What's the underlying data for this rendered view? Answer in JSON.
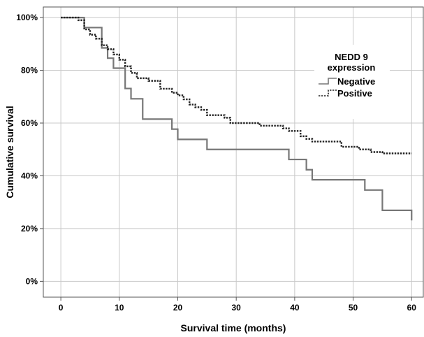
{
  "chart_data": {
    "type": "line",
    "subtype": "kaplan-meier step",
    "xlabel": "Survival time (months)",
    "ylabel": "Cumulative survival",
    "xlim": [
      -3,
      62
    ],
    "ylim": [
      -6,
      104
    ],
    "x_ticks": [
      0,
      10,
      20,
      30,
      40,
      50,
      60
    ],
    "y_ticks": [
      0,
      20,
      40,
      60,
      80,
      100
    ],
    "y_tick_labels": [
      "0%",
      "20%",
      "40%",
      "60%",
      "80%",
      "100%"
    ],
    "grid": true,
    "legend": {
      "title_line1": "NEDD 9",
      "title_line2": "expression",
      "placement": "upper right"
    },
    "series": [
      {
        "name": "Negative",
        "style": "solid",
        "color": "#777777",
        "x": [
          0,
          4,
          5,
          7,
          8,
          9,
          11,
          12,
          14,
          19,
          20,
          25,
          39,
          42,
          43,
          52,
          55,
          60
        ],
        "y": [
          100,
          96.2,
          96.2,
          88.5,
          84.6,
          80.8,
          73.1,
          69.2,
          61.5,
          57.7,
          53.8,
          50,
          46.2,
          42.3,
          38.5,
          34.6,
          26.9,
          23.1
        ]
      },
      {
        "name": "Positive",
        "style": "dotted",
        "color": "#222222",
        "x": [
          0,
          3,
          4,
          5,
          6,
          7,
          8,
          9,
          10,
          11,
          12,
          13,
          15,
          17,
          19,
          20,
          21,
          22,
          23,
          24,
          25,
          28,
          29,
          30,
          34,
          38,
          39,
          41,
          42,
          43,
          45,
          48,
          51,
          53,
          55,
          60
        ],
        "y": [
          100,
          99,
          95.5,
          93.5,
          92,
          89.5,
          88,
          86,
          84,
          81.5,
          79,
          77,
          76,
          73,
          71.5,
          70.5,
          69,
          67,
          66,
          65,
          63,
          62,
          60,
          60,
          59,
          58,
          57,
          55,
          54,
          53,
          53,
          51,
          50,
          49,
          48.5,
          48.5
        ]
      }
    ]
  }
}
